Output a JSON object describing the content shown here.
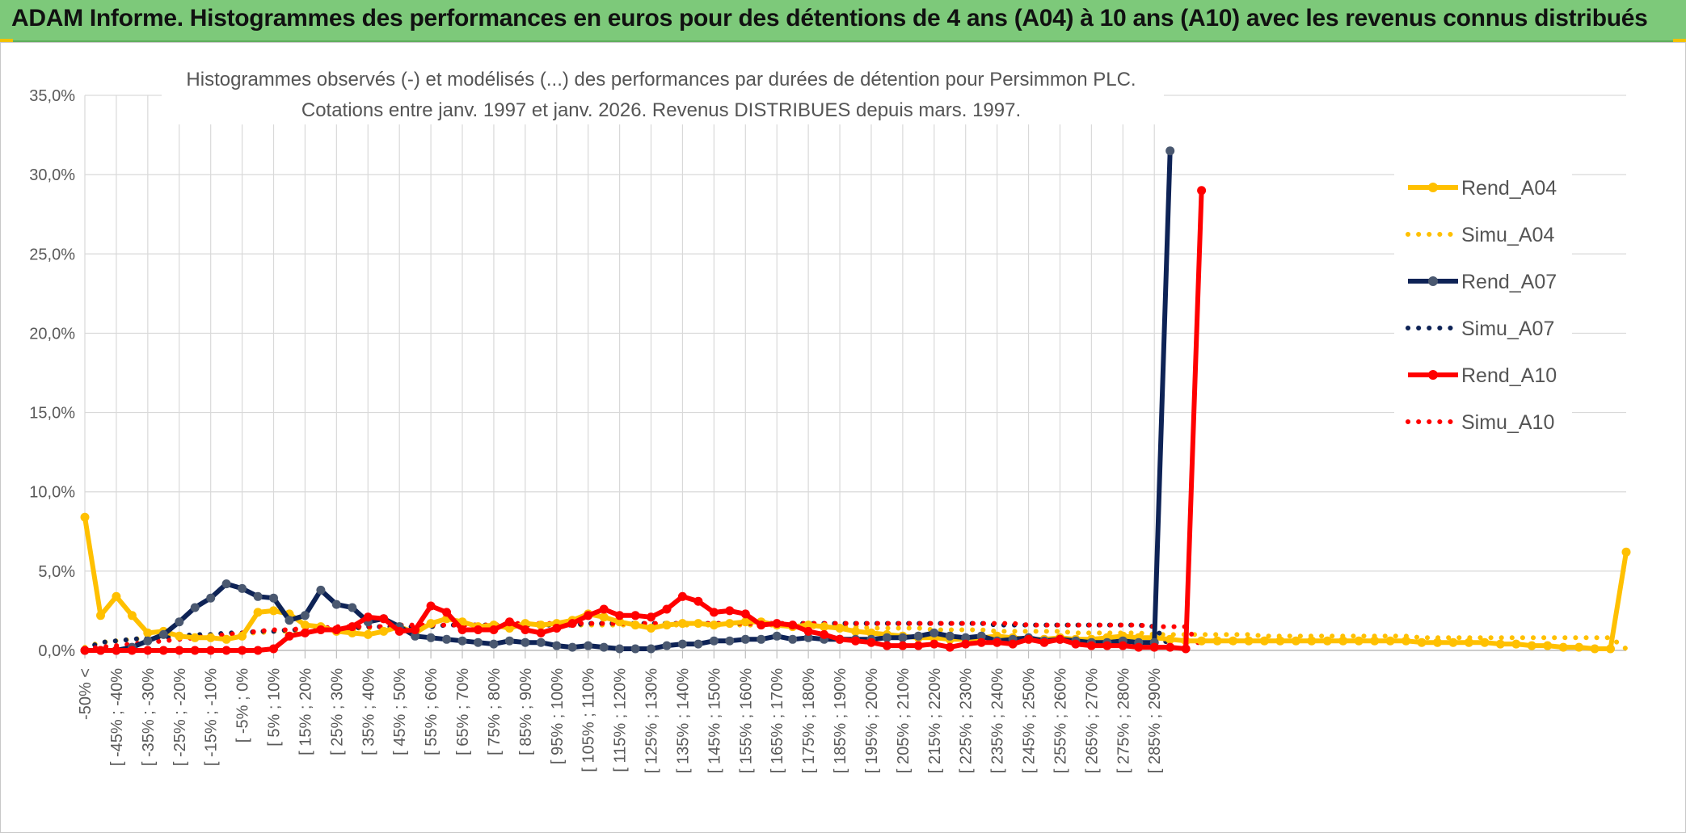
{
  "header": {
    "title": "ADAM Informe. Histogrammes des performances en euros pour des détentions de 4 ans (A04) à 10 ans (A10) avec les revenus connus distribués"
  },
  "colors": {
    "header_bg": "#7dc97a",
    "a04": "#ffc000",
    "a07": "#0e2356",
    "a07_marker": "#4a5870",
    "a10": "#ff0000",
    "grid": "#d9d9d9"
  },
  "chart_data": {
    "type": "line",
    "title_line1": "Histogrammes observés (-) et modélisés (...) des performances par durées de détention pour Persimmon PLC.",
    "title_line2": "Cotations entre janv. 1997 et janv. 2026. Revenus DISTRIBUES depuis mars. 1997.",
    "ylim": [
      0,
      35
    ],
    "y_ticks": [
      "0,0%",
      "5,0%",
      "10,0%",
      "15,0%",
      "20,0%",
      "25,0%",
      "30,0%",
      "35,0%"
    ],
    "y_tick_values": [
      0,
      5,
      10,
      15,
      20,
      25,
      30,
      35
    ],
    "x_tick_labels": [
      "-50% <",
      "[ -45% ; -40%",
      "[ -35% ; -30%",
      "[ -25% ; -20%",
      "[ -15% ; -10%",
      "[ -5% ; 0%",
      "[ 5% ; 10%",
      "[ 15% ; 20%",
      "[ 25% ; 30%",
      "[ 35% ; 40%",
      "[ 45% ; 50%",
      "[ 55% ; 60%",
      "[ 65% ; 70%",
      "[ 75% ; 80%",
      "[ 85% ; 90%",
      "[ 95% ; 100%",
      "[ 105% ; 110%",
      "[ 115% ; 120%",
      "[ 125% ; 130%",
      "[ 135% ; 140%",
      "[ 145% ; 150%",
      "[ 155% ; 160%",
      "[ 165% ; 170%",
      "[ 175% ; 180%",
      "[ 185% ; 190%",
      "[ 195% ; 200%",
      "[ 205% ; 210%",
      "[ 215% ; 220%",
      "[ 225% ; 230%",
      "[ 235% ; 240%",
      "[ 245% ; 250%",
      "[ 255% ; 260%",
      "[ 265% ; 270%",
      "[ 275% ; 280%",
      "[ 285% ; 290%"
    ],
    "legend_position": "right",
    "series": [
      {
        "name": "Rend_A04",
        "style": "solid",
        "color": "#ffc000",
        "values": [
          8.4,
          2.2,
          3.4,
          2.2,
          1.1,
          1.2,
          0.9,
          0.8,
          0.8,
          0.7,
          0.9,
          2.4,
          2.5,
          2.3,
          1.6,
          1.5,
          1.2,
          1.1,
          1.0,
          1.2,
          1.5,
          1.1,
          1.7,
          2.0,
          1.8,
          1.5,
          1.6,
          1.4,
          1.7,
          1.6,
          1.7,
          1.9,
          2.3,
          2.1,
          1.8,
          1.6,
          1.4,
          1.6,
          1.7,
          1.7,
          1.6,
          1.7,
          1.8,
          1.8,
          1.6,
          1.5,
          1.6,
          1.5,
          1.4,
          1.2,
          1.1,
          1.0,
          0.9,
          0.8,
          0.8,
          0.7,
          0.7,
          0.8,
          0.9,
          0.8,
          0.7,
          0.7,
          0.8,
          0.7,
          0.7,
          0.8,
          0.9,
          0.8,
          0.8,
          0.7,
          0.6,
          0.6,
          0.6,
          0.6,
          0.6,
          0.6,
          0.6,
          0.6,
          0.6,
          0.6,
          0.6,
          0.6,
          0.6,
          0.6,
          0.6,
          0.5,
          0.5,
          0.5,
          0.5,
          0.5,
          0.4,
          0.4,
          0.3,
          0.3,
          0.2,
          0.2,
          0.1,
          0.1,
          6.2
        ]
      },
      {
        "name": "Simu_A04",
        "style": "dotted",
        "color": "#ffc000",
        "values": [
          0.2,
          0.5,
          0.6,
          0.7,
          0.8,
          0.8,
          0.9,
          0.9,
          1.0,
          1.0,
          1.1,
          1.1,
          1.2,
          1.2,
          1.3,
          1.3,
          1.4,
          1.4,
          1.4,
          1.5,
          1.5,
          1.5,
          1.5,
          1.6,
          1.6,
          1.6,
          1.6,
          1.6,
          1.6,
          1.6,
          1.6,
          1.6,
          1.6,
          1.6,
          1.6,
          1.6,
          1.6,
          1.6,
          1.6,
          1.6,
          1.6,
          1.6,
          1.6,
          1.6,
          1.6,
          1.5,
          1.5,
          1.5,
          1.5,
          1.5,
          1.4,
          1.4,
          1.4,
          1.4,
          1.3,
          1.3,
          1.3,
          1.3,
          1.2,
          1.2,
          1.2,
          1.2,
          1.2,
          1.1,
          1.1,
          1.1,
          1.1,
          1.1,
          1.0,
          1.0,
          1.0,
          1.0,
          1.0,
          1.0,
          1.0,
          0.9,
          0.9,
          0.9,
          0.9,
          0.9,
          0.9,
          0.9,
          0.9,
          0.9,
          0.9,
          0.8,
          0.8,
          0.8,
          0.8,
          0.8,
          0.8,
          0.8,
          0.8,
          0.8,
          0.8,
          0.8,
          0.8,
          0.8,
          0.1
        ]
      },
      {
        "name": "Rend_A07",
        "style": "solid",
        "color": "#0e2356",
        "values": [
          0.0,
          0.0,
          0.0,
          0.2,
          0.6,
          1.0,
          1.8,
          2.7,
          3.3,
          4.2,
          3.9,
          3.4,
          3.3,
          1.9,
          2.2,
          3.8,
          2.9,
          2.7,
          1.8,
          2.0,
          1.5,
          0.9,
          0.8,
          0.7,
          0.6,
          0.5,
          0.4,
          0.6,
          0.5,
          0.5,
          0.3,
          0.2,
          0.3,
          0.2,
          0.1,
          0.1,
          0.1,
          0.3,
          0.4,
          0.4,
          0.6,
          0.6,
          0.7,
          0.7,
          0.9,
          0.7,
          0.8,
          0.7,
          0.7,
          0.7,
          0.7,
          0.8,
          0.8,
          0.9,
          1.1,
          0.9,
          0.8,
          0.9,
          0.6,
          0.7,
          0.8,
          0.6,
          0.7,
          0.6,
          0.5,
          0.5,
          0.6,
          0.5,
          0.5,
          31.5
        ]
      },
      {
        "name": "Simu_A07",
        "style": "dotted",
        "color": "#0e2356",
        "values": [
          0.1,
          0.5,
          0.6,
          0.7,
          0.8,
          0.8,
          0.9,
          1.0,
          1.0,
          1.1,
          1.1,
          1.2,
          1.2,
          1.3,
          1.3,
          1.4,
          1.4,
          1.4,
          1.5,
          1.5,
          1.5,
          1.5,
          1.5,
          1.6,
          1.6,
          1.6,
          1.6,
          1.6,
          1.6,
          1.6,
          1.6,
          1.6,
          1.7,
          1.7,
          1.7,
          1.7,
          1.7,
          1.7,
          1.7,
          1.7,
          1.7,
          1.7,
          1.7,
          1.7,
          1.7,
          1.7,
          1.7,
          1.7,
          1.7,
          1.7,
          1.7,
          1.7,
          1.7,
          1.7,
          1.7,
          1.7,
          1.7,
          1.7,
          1.6,
          1.6,
          1.6,
          1.6,
          1.6,
          1.6,
          1.6,
          1.6,
          1.6,
          1.6,
          1.5,
          0.2
        ]
      },
      {
        "name": "Rend_A10",
        "style": "solid",
        "color": "#ff0000",
        "values": [
          0.0,
          0.0,
          0.0,
          0.0,
          0.0,
          0.0,
          0.0,
          0.0,
          0.0,
          0.0,
          0.0,
          0.0,
          0.1,
          0.9,
          1.1,
          1.3,
          1.3,
          1.5,
          2.1,
          2.0,
          1.2,
          1.3,
          2.8,
          2.4,
          1.3,
          1.3,
          1.3,
          1.8,
          1.3,
          1.1,
          1.4,
          1.7,
          2.2,
          2.6,
          2.2,
          2.2,
          2.1,
          2.6,
          3.4,
          3.1,
          2.4,
          2.5,
          2.3,
          1.6,
          1.7,
          1.6,
          1.2,
          1.0,
          0.7,
          0.6,
          0.5,
          0.3,
          0.3,
          0.3,
          0.4,
          0.2,
          0.4,
          0.5,
          0.5,
          0.4,
          0.7,
          0.5,
          0.7,
          0.4,
          0.3,
          0.3,
          0.3,
          0.2,
          0.2,
          0.2,
          0.1,
          29.0
        ]
      },
      {
        "name": "Simu_A10",
        "style": "dotted",
        "color": "#ff0000",
        "values": [
          0.1,
          0.2,
          0.3,
          0.4,
          0.5,
          0.6,
          0.7,
          0.8,
          0.9,
          1.0,
          1.1,
          1.2,
          1.3,
          1.3,
          1.4,
          1.4,
          1.5,
          1.5,
          1.5,
          1.5,
          1.6,
          1.6,
          1.6,
          1.6,
          1.6,
          1.6,
          1.6,
          1.7,
          1.7,
          1.7,
          1.7,
          1.7,
          1.7,
          1.7,
          1.7,
          1.7,
          1.7,
          1.7,
          1.7,
          1.7,
          1.7,
          1.7,
          1.7,
          1.7,
          1.7,
          1.7,
          1.7,
          1.7,
          1.7,
          1.7,
          1.7,
          1.7,
          1.7,
          1.7,
          1.7,
          1.7,
          1.7,
          1.7,
          1.7,
          1.7,
          1.6,
          1.6,
          1.6,
          1.6,
          1.6,
          1.6,
          1.6,
          1.6,
          1.5,
          1.5,
          1.5,
          0.2
        ]
      }
    ]
  }
}
